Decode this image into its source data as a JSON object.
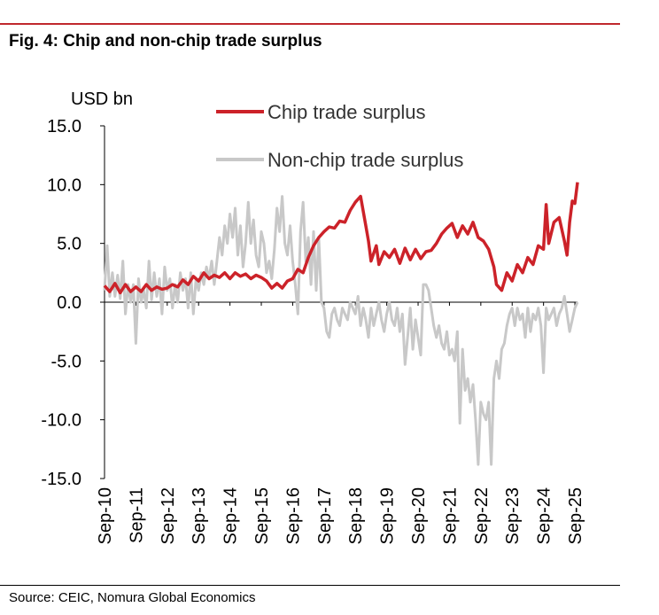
{
  "figure": {
    "title": "Fig. 4: Chip and non-chip trade surplus",
    "source": "Source: CEIC, Nomura Global Economics"
  },
  "chart_data": {
    "type": "line",
    "ylabel": "USD bn",
    "xlabel": "",
    "ylim": [
      -15,
      15
    ],
    "yticks": [
      15,
      10,
      5,
      0,
      -5,
      -10,
      -15
    ],
    "ytick_labels": [
      "15.0",
      "10.0",
      "5.0",
      "0.0",
      "-5.0",
      "-10.0",
      "-15.0"
    ],
    "x_range": [
      "2010-09",
      "2025-10"
    ],
    "xtick_labels": [
      "Sep-10",
      "Sep-11",
      "Sep-12",
      "Sep-13",
      "Sep-14",
      "Sep-15",
      "Sep-16",
      "Sep-17",
      "Sep-18",
      "Sep-19",
      "Sep-20",
      "Sep-21",
      "Sep-22",
      "Sep-23",
      "Sep-24",
      "Sep-25"
    ],
    "legend_position": "top-right",
    "grid": false,
    "series": [
      {
        "name": "Chip trade surplus",
        "color": "#cc2229",
        "points": [
          [
            "2010-09",
            1.4
          ],
          [
            "2010-11",
            0.9
          ],
          [
            "2011-01",
            1.6
          ],
          [
            "2011-03",
            0.8
          ],
          [
            "2011-05",
            1.5
          ],
          [
            "2011-07",
            0.9
          ],
          [
            "2011-09",
            1.3
          ],
          [
            "2011-11",
            0.9
          ],
          [
            "2012-01",
            1.5
          ],
          [
            "2012-03",
            1.0
          ],
          [
            "2012-05",
            1.3
          ],
          [
            "2012-07",
            1.1
          ],
          [
            "2012-09",
            1.2
          ],
          [
            "2012-11",
            1.5
          ],
          [
            "2013-01",
            1.3
          ],
          [
            "2013-03",
            1.9
          ],
          [
            "2013-05",
            1.5
          ],
          [
            "2013-07",
            2.2
          ],
          [
            "2013-09",
            1.8
          ],
          [
            "2013-11",
            2.5
          ],
          [
            "2014-01",
            2.0
          ],
          [
            "2014-03",
            2.3
          ],
          [
            "2014-05",
            2.1
          ],
          [
            "2014-07",
            2.5
          ],
          [
            "2014-09",
            2.0
          ],
          [
            "2014-11",
            2.5
          ],
          [
            "2015-01",
            2.2
          ],
          [
            "2015-03",
            2.4
          ],
          [
            "2015-05",
            2.0
          ],
          [
            "2015-07",
            2.3
          ],
          [
            "2015-09",
            2.1
          ],
          [
            "2015-11",
            1.8
          ],
          [
            "2016-01",
            1.2
          ],
          [
            "2016-03",
            1.6
          ],
          [
            "2016-05",
            1.2
          ],
          [
            "2016-07",
            1.8
          ],
          [
            "2016-09",
            2.0
          ],
          [
            "2016-11",
            2.8
          ],
          [
            "2017-01",
            2.5
          ],
          [
            "2017-03",
            3.8
          ],
          [
            "2017-05",
            4.8
          ],
          [
            "2017-07",
            5.5
          ],
          [
            "2017-09",
            6.0
          ],
          [
            "2017-11",
            6.4
          ],
          [
            "2018-01",
            6.3
          ],
          [
            "2018-03",
            6.9
          ],
          [
            "2018-05",
            6.8
          ],
          [
            "2018-07",
            7.8
          ],
          [
            "2018-09",
            8.5
          ],
          [
            "2018-11",
            9.0
          ],
          [
            "2019-01",
            6.5
          ],
          [
            "2019-02",
            5.2
          ],
          [
            "2019-03",
            3.5
          ],
          [
            "2019-05",
            4.8
          ],
          [
            "2019-06",
            3.2
          ],
          [
            "2019-08",
            4.3
          ],
          [
            "2019-10",
            3.8
          ],
          [
            "2019-12",
            4.5
          ],
          [
            "2020-02",
            3.3
          ],
          [
            "2020-04",
            4.6
          ],
          [
            "2020-06",
            3.6
          ],
          [
            "2020-08",
            4.5
          ],
          [
            "2020-10",
            3.7
          ],
          [
            "2020-12",
            4.3
          ],
          [
            "2021-02",
            4.4
          ],
          [
            "2021-04",
            5.0
          ],
          [
            "2021-06",
            5.8
          ],
          [
            "2021-08",
            6.3
          ],
          [
            "2021-10",
            6.7
          ],
          [
            "2021-12",
            5.5
          ],
          [
            "2022-02",
            6.5
          ],
          [
            "2022-04",
            5.8
          ],
          [
            "2022-06",
            6.8
          ],
          [
            "2022-08",
            5.5
          ],
          [
            "2022-10",
            5.2
          ],
          [
            "2022-12",
            4.5
          ],
          [
            "2023-02",
            3.0
          ],
          [
            "2023-03",
            1.5
          ],
          [
            "2023-05",
            1.0
          ],
          [
            "2023-07",
            2.5
          ],
          [
            "2023-09",
            1.8
          ],
          [
            "2023-11",
            3.2
          ],
          [
            "2024-01",
            2.5
          ],
          [
            "2024-03",
            3.8
          ],
          [
            "2024-05",
            3.2
          ],
          [
            "2024-07",
            4.8
          ],
          [
            "2024-09",
            4.5
          ],
          [
            "2024-10",
            8.3
          ],
          [
            "2024-11",
            5.0
          ],
          [
            "2025-01",
            6.8
          ],
          [
            "2025-03",
            7.2
          ],
          [
            "2025-05",
            5.2
          ],
          [
            "2025-06",
            4.0
          ],
          [
            "2025-07",
            6.8
          ],
          [
            "2025-08",
            8.6
          ],
          [
            "2025-09",
            8.4
          ],
          [
            "2025-10",
            10.2
          ]
        ]
      },
      {
        "name": "Non-chip trade surplus",
        "color": "#c8c8c8",
        "points": [
          [
            "2010-09",
            1.0
          ],
          [
            "2010-10",
            4.8
          ],
          [
            "2010-11",
            0.5
          ],
          [
            "2010-12",
            2.5
          ],
          [
            "2011-01",
            0.5
          ],
          [
            "2011-02",
            2.3
          ],
          [
            "2011-03",
            0.3
          ],
          [
            "2011-04",
            3.5
          ],
          [
            "2011-05",
            -1.0
          ],
          [
            "2011-06",
            1.5
          ],
          [
            "2011-07",
            0.0
          ],
          [
            "2011-08",
            1.5
          ],
          [
            "2011-09",
            -3.5
          ],
          [
            "2011-10",
            2.0
          ],
          [
            "2011-11",
            0.0
          ],
          [
            "2011-12",
            1.0
          ],
          [
            "2012-01",
            -0.5
          ],
          [
            "2012-02",
            3.5
          ],
          [
            "2012-03",
            0.2
          ],
          [
            "2012-04",
            2.5
          ],
          [
            "2012-05",
            0.5
          ],
          [
            "2012-06",
            2.0
          ],
          [
            "2012-07",
            -1.0
          ],
          [
            "2012-08",
            3.0
          ],
          [
            "2012-09",
            1.0
          ],
          [
            "2012-10",
            2.0
          ],
          [
            "2012-11",
            -0.5
          ],
          [
            "2012-12",
            1.5
          ],
          [
            "2013-01",
            0.0
          ],
          [
            "2013-02",
            2.5
          ],
          [
            "2013-03",
            1.0
          ],
          [
            "2013-04",
            2.0
          ],
          [
            "2013-05",
            -0.5
          ],
          [
            "2013-06",
            2.5
          ],
          [
            "2013-07",
            -1.0
          ],
          [
            "2013-08",
            2.0
          ],
          [
            "2013-09",
            1.0
          ],
          [
            "2013-10",
            2.5
          ],
          [
            "2013-11",
            1.5
          ],
          [
            "2013-12",
            3.0
          ],
          [
            "2014-01",
            2.0
          ],
          [
            "2014-02",
            3.5
          ],
          [
            "2014-03",
            1.5
          ],
          [
            "2014-04",
            3.5
          ],
          [
            "2014-05",
            5.5
          ],
          [
            "2014-06",
            4.0
          ],
          [
            "2014-07",
            6.5
          ],
          [
            "2014-08",
            5.0
          ],
          [
            "2014-09",
            7.5
          ],
          [
            "2014-10",
            5.5
          ],
          [
            "2014-11",
            8.0
          ],
          [
            "2014-12",
            4.0
          ],
          [
            "2015-01",
            6.5
          ],
          [
            "2015-02",
            3.0
          ],
          [
            "2015-03",
            5.0
          ],
          [
            "2015-04",
            8.5
          ],
          [
            "2015-05",
            5.0
          ],
          [
            "2015-06",
            7.0
          ],
          [
            "2015-07",
            4.0
          ],
          [
            "2015-08",
            3.0
          ],
          [
            "2015-09",
            6.0
          ],
          [
            "2015-10",
            5.0
          ],
          [
            "2015-11",
            2.5
          ],
          [
            "2015-12",
            3.5
          ],
          [
            "2016-01",
            2.0
          ],
          [
            "2016-02",
            4.5
          ],
          [
            "2016-03",
            8.0
          ],
          [
            "2016-04",
            6.0
          ],
          [
            "2016-05",
            9.0
          ],
          [
            "2016-06",
            5.0
          ],
          [
            "2016-07",
            4.0
          ],
          [
            "2016-08",
            6.5
          ],
          [
            "2016-09",
            3.5
          ],
          [
            "2016-10",
            1.5
          ],
          [
            "2016-11",
            -1.0
          ],
          [
            "2016-12",
            6.0
          ],
          [
            "2017-01",
            8.5
          ],
          [
            "2017-02",
            3.5
          ],
          [
            "2017-03",
            5.5
          ],
          [
            "2017-04",
            1.5
          ],
          [
            "2017-05",
            6.0
          ],
          [
            "2017-06",
            1.0
          ],
          [
            "2017-07",
            5.5
          ],
          [
            "2017-08",
            0.0
          ],
          [
            "2017-09",
            -0.5
          ],
          [
            "2017-10",
            -2.5
          ],
          [
            "2017-11",
            -3.0
          ],
          [
            "2017-12",
            -1.0
          ],
          [
            "2018-01",
            -0.5
          ],
          [
            "2018-02",
            -1.5
          ],
          [
            "2018-03",
            -2.0
          ],
          [
            "2018-04",
            -0.5
          ],
          [
            "2018-05",
            -1.0
          ],
          [
            "2018-06",
            -1.5
          ],
          [
            "2018-07",
            0.0
          ],
          [
            "2018-08",
            -0.5
          ],
          [
            "2018-09",
            -1.0
          ],
          [
            "2018-10",
            0.5
          ],
          [
            "2018-11",
            -2.0
          ],
          [
            "2018-12",
            -0.5
          ],
          [
            "2019-01",
            -1.5
          ],
          [
            "2019-02",
            -3.0
          ],
          [
            "2019-03",
            -0.5
          ],
          [
            "2019-04",
            -2.0
          ],
          [
            "2019-05",
            -1.0
          ],
          [
            "2019-06",
            0.0
          ],
          [
            "2019-07",
            -1.5
          ],
          [
            "2019-08",
            -2.5
          ],
          [
            "2019-09",
            -1.0
          ],
          [
            "2019-10",
            0.0
          ],
          [
            "2019-11",
            -1.5
          ],
          [
            "2019-12",
            -2.0
          ],
          [
            "2020-01",
            -0.5
          ],
          [
            "2020-02",
            -2.5
          ],
          [
            "2020-03",
            -1.0
          ],
          [
            "2020-04",
            -5.3
          ],
          [
            "2020-05",
            -3.0
          ],
          [
            "2020-06",
            -0.5
          ],
          [
            "2020-07",
            -4.0
          ],
          [
            "2020-08",
            -1.5
          ],
          [
            "2020-09",
            -3.0
          ],
          [
            "2020-10",
            -4.5
          ],
          [
            "2020-11",
            1.5
          ],
          [
            "2020-12",
            1.5
          ],
          [
            "2021-01",
            1.0
          ],
          [
            "2021-02",
            -0.5
          ],
          [
            "2021-03",
            -2.0
          ],
          [
            "2021-04",
            -3.0
          ],
          [
            "2021-05",
            -2.0
          ],
          [
            "2021-06",
            -3.5
          ],
          [
            "2021-07",
            -4.0
          ],
          [
            "2021-08",
            -2.5
          ],
          [
            "2021-09",
            -4.5
          ],
          [
            "2021-10",
            -4.0
          ],
          [
            "2021-11",
            -5.0
          ],
          [
            "2021-12",
            -2.5
          ],
          [
            "2022-01",
            -10.3
          ],
          [
            "2022-02",
            -4.0
          ],
          [
            "2022-03",
            -7.5
          ],
          [
            "2022-04",
            -6.5
          ],
          [
            "2022-05",
            -8.5
          ],
          [
            "2022-06",
            -7.0
          ],
          [
            "2022-07",
            -10.0
          ],
          [
            "2022-08",
            -13.8
          ],
          [
            "2022-09",
            -8.5
          ],
          [
            "2022-10",
            -9.5
          ],
          [
            "2022-11",
            -10.0
          ],
          [
            "2022-12",
            -8.5
          ],
          [
            "2023-01",
            -13.8
          ],
          [
            "2023-02",
            -6.5
          ],
          [
            "2023-03",
            -5.0
          ],
          [
            "2023-04",
            -6.5
          ],
          [
            "2023-05",
            -4.0
          ],
          [
            "2023-06",
            -3.5
          ],
          [
            "2023-07",
            -2.0
          ],
          [
            "2023-08",
            -1.0
          ],
          [
            "2023-09",
            -0.5
          ],
          [
            "2023-10",
            -2.0
          ],
          [
            "2023-11",
            -0.5
          ],
          [
            "2023-12",
            -1.5
          ],
          [
            "2024-01",
            -1.0
          ],
          [
            "2024-02",
            -3.0
          ],
          [
            "2024-03",
            -0.5
          ],
          [
            "2024-04",
            -2.5
          ],
          [
            "2024-05",
            -1.0
          ],
          [
            "2024-06",
            -1.5
          ],
          [
            "2024-07",
            -0.5
          ],
          [
            "2024-08",
            -2.0
          ],
          [
            "2024-09",
            -6.0
          ],
          [
            "2024-10",
            -0.5
          ],
          [
            "2024-11",
            -1.5
          ],
          [
            "2024-12",
            -1.0
          ],
          [
            "2025-01",
            -0.5
          ],
          [
            "2025-02",
            -2.0
          ],
          [
            "2025-03",
            -1.0
          ],
          [
            "2025-04",
            -0.5
          ],
          [
            "2025-05",
            0.5
          ],
          [
            "2025-06",
            -1.0
          ],
          [
            "2025-07",
            -2.5
          ],
          [
            "2025-08",
            -1.5
          ],
          [
            "2025-09",
            -0.5
          ],
          [
            "2025-10",
            0.0
          ]
        ]
      }
    ]
  }
}
